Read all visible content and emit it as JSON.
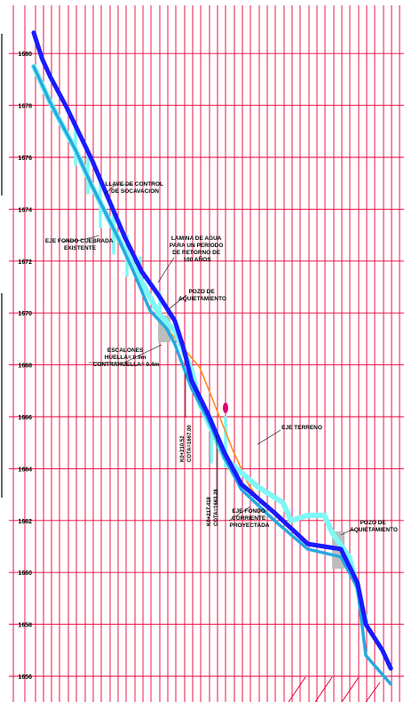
{
  "colors": {
    "grid": "#e8003a",
    "axis": "#000000",
    "background": "#ffffff",
    "channel_existing": "#1a1aff",
    "water_level": "#7ff7f4",
    "channel_projected": "#26a9e0",
    "terrain": "#ff8a1a",
    "drop_box": "#bdbdbd",
    "marker": "#e0006a"
  },
  "chart_data": {
    "type": "line",
    "ylim": [
      1654,
      1681
    ],
    "y_ticks": [
      1680,
      1678,
      1676,
      1674,
      1672,
      1670,
      1668,
      1666,
      1664,
      1662,
      1660,
      1658,
      1656,
      1654
    ],
    "series": [
      {
        "name": "EJE FONDO CUEBRADA EXISTENTE",
        "points": [
          [
            0,
            1680.8
          ],
          [
            1,
            1679.8
          ],
          [
            2,
            1679.1
          ],
          [
            4,
            1677.9
          ],
          [
            7,
            1675.9
          ],
          [
            9,
            1674.4
          ],
          [
            11,
            1672.9
          ],
          [
            13,
            1671.6
          ],
          [
            15,
            1670.7
          ],
          [
            17,
            1669.7
          ],
          [
            18,
            1668.7
          ],
          [
            19,
            1667.4
          ],
          [
            21,
            1666.1
          ],
          [
            23,
            1664.6
          ],
          [
            25,
            1663.4
          ],
          [
            29,
            1662.3
          ],
          [
            33,
            1661.1
          ],
          [
            37,
            1660.9
          ],
          [
            39,
            1659.6
          ],
          [
            40,
            1658.0
          ],
          [
            42,
            1657.0
          ],
          [
            43,
            1656.3
          ]
        ]
      },
      {
        "name": "LAMINA DE AGUA PARA UN PERIODO DE RETORNO DE 100 AÑOS",
        "points": [
          [
            0,
            1679.5
          ],
          [
            2,
            1678.1
          ],
          [
            5,
            1676.3
          ],
          [
            7,
            1674.9
          ],
          [
            10,
            1673.0
          ],
          [
            13,
            1671.2
          ],
          [
            15,
            1670.0
          ],
          [
            17,
            1669.3
          ],
          [
            19,
            1667.8
          ],
          [
            20,
            1666.5
          ],
          [
            22,
            1665.1
          ],
          [
            23,
            1664.4
          ],
          [
            27,
            1663.3
          ],
          [
            30,
            1662.7
          ],
          [
            31,
            1662.0
          ],
          [
            33,
            1662.2
          ],
          [
            35,
            1662.2
          ],
          [
            36,
            1661.5
          ],
          [
            38,
            1660.6
          ],
          [
            39,
            1659.4
          ],
          [
            40,
            1658.1
          ]
        ]
      },
      {
        "name": "EJE FONDO CORRIENTE PROYECTADA",
        "points": [
          [
            0,
            1679.5
          ],
          [
            2,
            1678.1
          ],
          [
            5,
            1676.3
          ],
          [
            7,
            1674.9
          ],
          [
            10,
            1673.0
          ],
          [
            12,
            1671.6
          ],
          [
            14,
            1670.1
          ],
          [
            16,
            1669.4
          ],
          [
            17,
            1668.8
          ],
          [
            19,
            1667.1
          ],
          [
            21,
            1665.9
          ],
          [
            23,
            1664.4
          ],
          [
            25,
            1663.2
          ],
          [
            29,
            1662.0
          ],
          [
            33,
            1660.9
          ],
          [
            37,
            1660.6
          ],
          [
            39,
            1659.4
          ],
          [
            40,
            1656.8
          ],
          [
            43,
            1655.7
          ]
        ]
      },
      {
        "name": "EJE TERRENO",
        "points": [
          [
            16,
            1669.4
          ],
          [
            20,
            1667.9
          ],
          [
            24,
            1664.7
          ],
          [
            26,
            1663.3
          ],
          [
            28,
            1662.5
          ]
        ]
      }
    ]
  },
  "labels": {
    "control_key": [
      "LLAVE DE CONTROL",
      "DE SOCAVACION"
    ],
    "existing_bed": [
      "EJE FONDO CUEBRADA",
      "EXISTENTE"
    ],
    "water_sheet": [
      "LAMINA DE AGUA",
      "PARA UN PERIODO",
      "DE RETORNO DE",
      "100 AÑOS"
    ],
    "drop_well_1": [
      "POZO DE",
      "AQUIETAMIENTO"
    ],
    "steps": [
      "ESCALONES",
      "HUELLA= 0.9m",
      "CONTRAHUELLA= 0.4m"
    ],
    "terrain": "EJE TERRENO",
    "projected_bed": [
      "EJE FONDO",
      "CORRIENTE",
      "PROYECTADA"
    ],
    "drop_well_2": [
      "POZO DE",
      "AQUIETAMIENTO"
    ],
    "abscissa_1": [
      "K0+210.52",
      "COTA=1667.00"
    ],
    "abscissa_2": [
      "K0+217.418",
      "COTA=1663.28"
    ]
  }
}
